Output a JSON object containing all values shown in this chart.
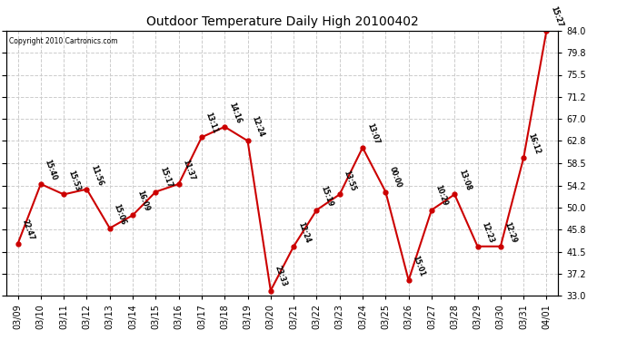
{
  "title": "Outdoor Temperature Daily High 20100402",
  "copyright": "Copyright 2010 Cartronics.com",
  "bg_color": "#ffffff",
  "grid_color": "#cccccc",
  "line_color": "#cc0000",
  "marker_color": "#cc0000",
  "text_color": "#000000",
  "ylim": [
    33.0,
    84.0
  ],
  "yticks": [
    33.0,
    37.2,
    41.5,
    45.8,
    50.0,
    54.2,
    58.5,
    62.8,
    67.0,
    71.2,
    75.5,
    79.8,
    84.0
  ],
  "dates": [
    "03/09",
    "03/10",
    "03/11",
    "03/12",
    "03/13",
    "03/14",
    "03/15",
    "03/16",
    "03/17",
    "03/18",
    "03/19",
    "03/20",
    "03/21",
    "03/22",
    "03/23",
    "03/24",
    "03/25",
    "03/26",
    "03/27",
    "03/28",
    "03/29",
    "03/30",
    "03/31",
    "04/01"
  ],
  "values": [
    43.0,
    54.5,
    52.5,
    53.5,
    46.0,
    48.5,
    53.0,
    54.5,
    63.5,
    65.5,
    62.8,
    34.0,
    42.5,
    49.5,
    52.5,
    61.5,
    53.0,
    36.0,
    49.5,
    52.5,
    42.5,
    42.5,
    59.5,
    84.0
  ],
  "times": [
    "22:47",
    "15:40",
    "15:53",
    "11:56",
    "15:06",
    "16:09",
    "15:17",
    "11:37",
    "13:11",
    "14:16",
    "12:24",
    "23:33",
    "12:24",
    "15:19",
    "13:55",
    "13:07",
    "00:00",
    "15:01",
    "10:29",
    "13:08",
    "12:23",
    "12:29",
    "16:12",
    "15:27"
  ]
}
